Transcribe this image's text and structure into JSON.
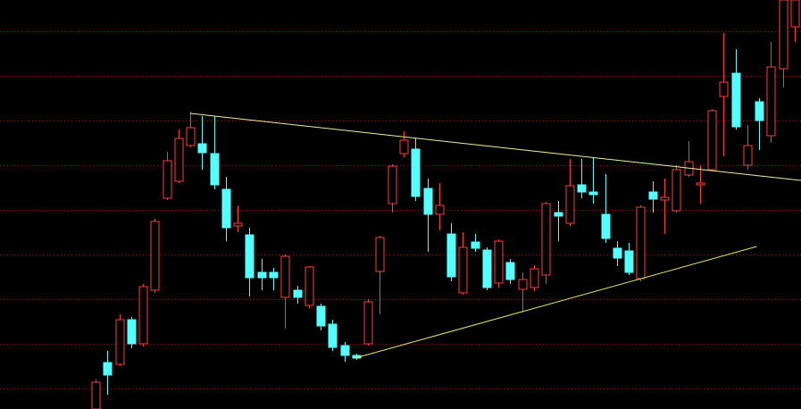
{
  "chart_data": {
    "type": "candlestick",
    "xlim": [
      -8.06,
      59.53
    ],
    "ylim": [
      0,
      458
    ],
    "yticks": [
      23,
      73,
      123,
      173,
      223,
      273,
      323,
      373,
      423
    ],
    "grid": true,
    "grid_color": "#8a2020",
    "up_color": "#ff3c3c",
    "down_color": "#54ffff",
    "open": [
      0,
      52,
      50,
      100,
      73,
      133,
      236,
      255,
      295,
      297,
      286,
      246,
      205,
      195,
      153,
      153,
      125,
      133,
      116,
      115,
      95,
      71,
      60,
      73,
      154,
      230,
      286,
      291,
      247,
      218,
      196,
      130,
      187,
      178,
      141,
      164,
      134,
      136,
      150,
      220,
      208,
      251,
      243,
      218,
      180,
      177,
      146,
      243,
      234,
      222,
      262,
      251,
      268,
      350,
      376,
      273,
      344,
      306,
      381,
      428
    ],
    "high": [
      33,
      65,
      106,
      103,
      140,
      213,
      288,
      313,
      333,
      328,
      328,
      260,
      228,
      203,
      168,
      158,
      173,
      138,
      160,
      118,
      100,
      75,
      62,
      123,
      194,
      274,
      311,
      303,
      258,
      253,
      208,
      198,
      196,
      181,
      190,
      168,
      153,
      161,
      232,
      233,
      280,
      280,
      282,
      263,
      188,
      186,
      228,
      255,
      258,
      273,
      300,
      273,
      336,
      421,
      403,
      318,
      348,
      411,
      458,
      458
    ],
    "low": [
      0,
      16,
      48,
      68,
      70,
      130,
      234,
      253,
      293,
      268,
      246,
      188,
      198,
      126,
      133,
      133,
      90,
      118,
      113,
      88,
      65,
      53,
      55,
      71,
      106,
      220,
      282,
      233,
      176,
      200,
      143,
      128,
      176,
      133,
      136,
      140,
      108,
      132,
      140,
      188,
      205,
      236,
      230,
      186,
      160,
      150,
      143,
      220,
      196,
      220,
      260,
      230,
      266,
      283,
      313,
      268,
      290,
      298,
      360,
      411
    ],
    "close": [
      30,
      38,
      100,
      73,
      137,
      210,
      278,
      303,
      315,
      287,
      251,
      203,
      208,
      147,
      147,
      147,
      171,
      125,
      159,
      93,
      69,
      60,
      57,
      120,
      192,
      272,
      301,
      238,
      218,
      228,
      148,
      181,
      180,
      136,
      188,
      145,
      145,
      157,
      230,
      216,
      250,
      243,
      240,
      191,
      169,
      153,
      226,
      235,
      237,
      268,
      277,
      253,
      334,
      366,
      316,
      295,
      323,
      383,
      458,
      458
    ],
    "trendlines": [
      {
        "x": [
          8,
          59.53
        ],
        "values": [
          331,
          256
        ],
        "color": "#f0f0a0"
      },
      {
        "x": [
          21.9,
          55.8
        ],
        "values": [
          57,
          182
        ],
        "color": "#e8e860"
      }
    ]
  }
}
